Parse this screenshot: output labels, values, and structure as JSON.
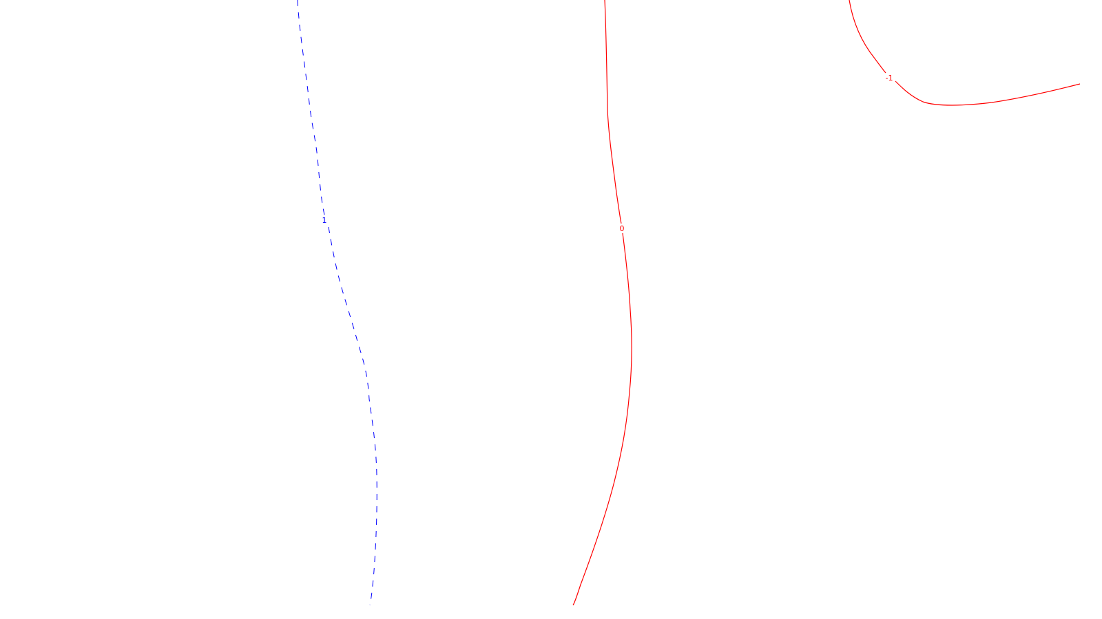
{
  "contours": [
    {
      "name": "contour-level-1",
      "level_label": "1",
      "color": "#0000ff",
      "line_style": "dashed"
    },
    {
      "name": "contour-level-0",
      "level_label": "0",
      "color": "#ff0000",
      "line_style": "solid"
    },
    {
      "name": "contour-level-neg1",
      "level_label": "-1",
      "color": "#ff0000",
      "line_style": "solid"
    }
  ]
}
